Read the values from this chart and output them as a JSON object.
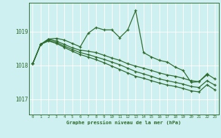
{
  "bg_color": "#cff0f0",
  "line_color": "#2d6a2d",
  "grid_color": "#ffffff",
  "xlabel": "Graphe pression niveau de la mer (hPa)",
  "yticks": [
    1017,
    1018,
    1019
  ],
  "xlim": [
    -0.5,
    23.5
  ],
  "ylim": [
    1016.55,
    1019.85
  ],
  "series": [
    {
      "x": [
        0,
        1,
        2,
        3,
        4,
        5,
        6,
        7,
        8,
        9,
        10,
        11,
        12,
        13,
        14,
        15,
        16,
        17,
        18,
        19,
        20,
        21,
        22
      ],
      "y": [
        1018.05,
        1018.62,
        1018.78,
        1018.8,
        1018.75,
        1018.65,
        1018.55,
        1018.95,
        1019.12,
        1019.05,
        1019.05,
        1018.82,
        1019.05,
        1019.62,
        1018.38,
        1018.25,
        1018.15,
        1018.1,
        1017.95,
        1017.85,
        1017.5,
        1017.52,
        1017.72
      ]
    },
    {
      "x": [
        0,
        1,
        2,
        3,
        4,
        5,
        6,
        7,
        8,
        9,
        10,
        11,
        12,
        13,
        14,
        15,
        16,
        17,
        18,
        19,
        20,
        21,
        22,
        23
      ],
      "y": [
        1018.05,
        1018.62,
        1018.78,
        1018.72,
        1018.62,
        1018.52,
        1018.45,
        1018.42,
        1018.38,
        1018.3,
        1018.22,
        1018.15,
        1018.05,
        1017.98,
        1017.92,
        1017.85,
        1017.78,
        1017.72,
        1017.68,
        1017.62,
        1017.55,
        1017.52,
        1017.75,
        1017.6
      ]
    },
    {
      "x": [
        0,
        1,
        2,
        3,
        4,
        5,
        6,
        7,
        8,
        9,
        10,
        11,
        12,
        13,
        14,
        15,
        16,
        17,
        18,
        19,
        20,
        21,
        22,
        23
      ],
      "y": [
        1018.05,
        1018.62,
        1018.75,
        1018.68,
        1018.57,
        1018.47,
        1018.38,
        1018.32,
        1018.25,
        1018.18,
        1018.1,
        1018.02,
        1017.92,
        1017.82,
        1017.75,
        1017.68,
        1017.6,
        1017.55,
        1017.5,
        1017.45,
        1017.38,
        1017.35,
        1017.55,
        1017.42
      ]
    },
    {
      "x": [
        0,
        1,
        2,
        3,
        4,
        5,
        6,
        7,
        8,
        9,
        10,
        11,
        12,
        13,
        14,
        15,
        16,
        17,
        18,
        19,
        20,
        21,
        22,
        23
      ],
      "y": [
        1018.05,
        1018.62,
        1018.72,
        1018.65,
        1018.53,
        1018.42,
        1018.32,
        1018.25,
        1018.17,
        1018.08,
        1017.98,
        1017.88,
        1017.78,
        1017.68,
        1017.62,
        1017.55,
        1017.48,
        1017.42,
        1017.38,
        1017.32,
        1017.25,
        1017.22,
        1017.43,
        1017.28
      ]
    }
  ]
}
